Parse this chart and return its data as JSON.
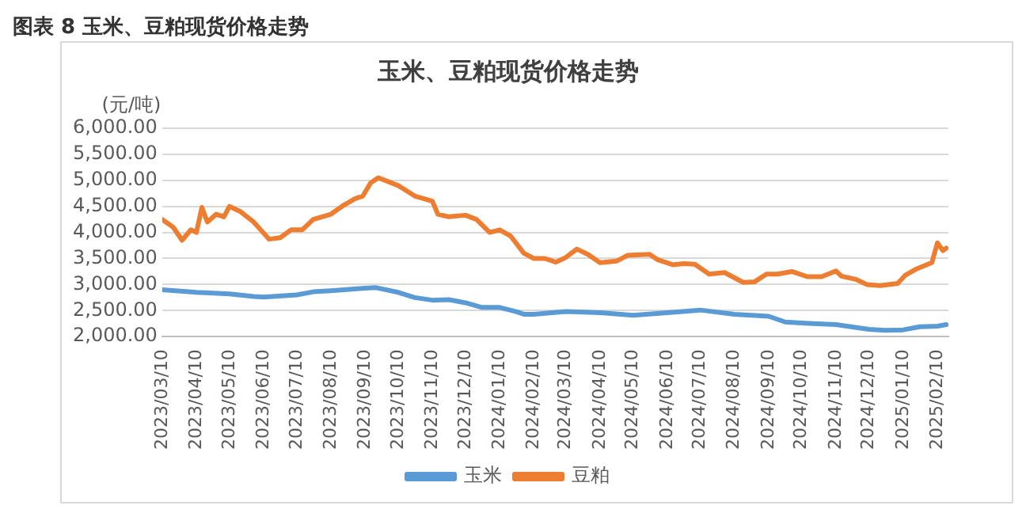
{
  "chart_data": {
    "type": "line",
    "title": "玉米、豆粕现货价格走势",
    "ylabel": "(元/吨)",
    "annotations": [
      "图表 8 玉米、豆粕现货价格走势"
    ],
    "xlim": [
      "2023-03-10",
      "2025-02-20"
    ],
    "xticks": [
      {
        "value": "2023-03-10",
        "label": "2023/03/10"
      },
      {
        "value": "2023-04-10",
        "label": "2023/04/10"
      },
      {
        "value": "2023-05-10",
        "label": "2023/05/10"
      },
      {
        "value": "2023-06-10",
        "label": "2023/06/10"
      },
      {
        "value": "2023-07-10",
        "label": "2023/07/10"
      },
      {
        "value": "2023-08-10",
        "label": "2023/08/10"
      },
      {
        "value": "2023-09-10",
        "label": "2023/09/10"
      },
      {
        "value": "2023-10-10",
        "label": "2023/10/10"
      },
      {
        "value": "2023-11-10",
        "label": "2023/11/10"
      },
      {
        "value": "2023-12-10",
        "label": "2023/12/10"
      },
      {
        "value": "2024-01-10",
        "label": "2024/01/10"
      },
      {
        "value": "2024-02-10",
        "label": "2024/02/10"
      },
      {
        "value": "2024-03-10",
        "label": "2024/03/10"
      },
      {
        "value": "2024-04-10",
        "label": "2024/04/10"
      },
      {
        "value": "2024-05-10",
        "label": "2024/05/10"
      },
      {
        "value": "2024-06-10",
        "label": "2024/06/10"
      },
      {
        "value": "2024-07-10",
        "label": "2024/07/10"
      },
      {
        "value": "2024-08-10",
        "label": "2024/08/10"
      },
      {
        "value": "2024-09-10",
        "label": "2024/09/10"
      },
      {
        "value": "2024-10-10",
        "label": "2024/10/10"
      },
      {
        "value": "2024-11-10",
        "label": "2024/11/10"
      },
      {
        "value": "2024-12-10",
        "label": "2024/12/10"
      },
      {
        "value": "2025-01-10",
        "label": "2025/01/10"
      },
      {
        "value": "2025-02-10",
        "label": "2025/02/10"
      }
    ],
    "ylim": [
      2000,
      6000
    ],
    "yticks": [
      {
        "value": 2000,
        "label": "2,000.00"
      },
      {
        "value": 2500,
        "label": "2,500.00"
      },
      {
        "value": 3000,
        "label": "3,000.00"
      },
      {
        "value": 3500,
        "label": "3,500.00"
      },
      {
        "value": 4000,
        "label": "4,000.00"
      },
      {
        "value": 4500,
        "label": "4,500.00"
      },
      {
        "value": 5000,
        "label": "5,000.00"
      },
      {
        "value": 5500,
        "label": "5,500.00"
      },
      {
        "value": 6000,
        "label": "6,000.00"
      }
    ],
    "grid": "y",
    "legend": "bottom",
    "marker": "none",
    "line_style": "solid",
    "series": [
      {
        "name": "玉米",
        "color": "#5b9bd5",
        "x": [
          "2023-03-10",
          "2023-04-10",
          "2023-05-10",
          "2023-06-01",
          "2023-06-10",
          "2023-07-10",
          "2023-07-25",
          "2023-08-10",
          "2023-09-10",
          "2023-09-20",
          "2023-10-10",
          "2023-10-25",
          "2023-11-10",
          "2023-11-25",
          "2023-12-10",
          "2023-12-25",
          "2024-01-10",
          "2024-01-25",
          "2024-02-01",
          "2024-02-10",
          "2024-03-10",
          "2024-04-10",
          "2024-05-10",
          "2024-06-10",
          "2024-07-10",
          "2024-08-10",
          "2024-09-10",
          "2024-09-25",
          "2024-10-10",
          "2024-11-10",
          "2024-12-10",
          "2024-12-25",
          "2025-01-10",
          "2025-01-25",
          "2025-02-10",
          "2025-02-18"
        ],
        "values": [
          2900,
          2850,
          2820,
          2770,
          2760,
          2800,
          2860,
          2880,
          2930,
          2940,
          2850,
          2750,
          2700,
          2710,
          2650,
          2560,
          2560,
          2480,
          2430,
          2430,
          2480,
          2460,
          2410,
          2460,
          2510,
          2430,
          2390,
          2280,
          2260,
          2230,
          2140,
          2120,
          2130,
          2190,
          2200,
          2230
        ]
      },
      {
        "name": "豆粕",
        "color": "#ed7d31",
        "x": [
          "2023-03-10",
          "2023-03-20",
          "2023-03-28",
          "2023-04-05",
          "2023-04-10",
          "2023-04-15",
          "2023-04-20",
          "2023-04-28",
          "2023-05-05",
          "2023-05-10",
          "2023-05-20",
          "2023-06-01",
          "2023-06-15",
          "2023-06-25",
          "2023-07-05",
          "2023-07-15",
          "2023-07-25",
          "2023-08-10",
          "2023-08-20",
          "2023-09-01",
          "2023-09-08",
          "2023-09-15",
          "2023-09-22",
          "2023-10-10",
          "2023-10-25",
          "2023-11-10",
          "2023-11-15",
          "2023-11-25",
          "2023-12-10",
          "2023-12-20",
          "2024-01-01",
          "2024-01-10",
          "2024-01-20",
          "2024-02-01",
          "2024-02-10",
          "2024-02-20",
          "2024-03-01",
          "2024-03-10",
          "2024-03-20",
          "2024-03-30",
          "2024-04-10",
          "2024-04-25",
          "2024-05-05",
          "2024-05-25",
          "2024-06-01",
          "2024-06-15",
          "2024-06-25",
          "2024-07-05",
          "2024-07-18",
          "2024-08-01",
          "2024-08-18",
          "2024-08-28",
          "2024-09-08",
          "2024-09-18",
          "2024-10-01",
          "2024-10-15",
          "2024-10-28",
          "2024-11-10",
          "2024-11-15",
          "2024-11-28",
          "2024-12-08",
          "2024-12-20",
          "2025-01-05",
          "2025-01-12",
          "2025-01-22",
          "2025-02-05",
          "2025-02-10",
          "2025-02-15",
          "2025-02-18"
        ],
        "values": [
          4250,
          4100,
          3850,
          4050,
          4000,
          4480,
          4200,
          4350,
          4300,
          4500,
          4400,
          4200,
          3870,
          3900,
          4050,
          4050,
          4250,
          4350,
          4500,
          4650,
          4700,
          4950,
          5050,
          4900,
          4700,
          4600,
          4350,
          4300,
          4330,
          4250,
          4000,
          4050,
          3930,
          3600,
          3500,
          3500,
          3430,
          3520,
          3680,
          3580,
          3420,
          3450,
          3560,
          3580,
          3480,
          3380,
          3400,
          3390,
          3200,
          3230,
          3040,
          3050,
          3200,
          3200,
          3250,
          3150,
          3150,
          3260,
          3160,
          3100,
          3000,
          2980,
          3020,
          3180,
          3300,
          3420,
          3800,
          3650,
          3700
        ]
      }
    ]
  }
}
